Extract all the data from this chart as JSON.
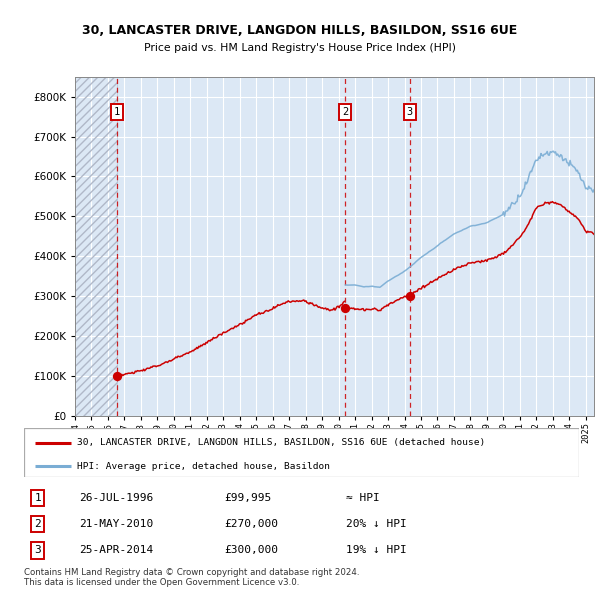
{
  "title1": "30, LANCASTER DRIVE, LANGDON HILLS, BASILDON, SS16 6UE",
  "title2": "Price paid vs. HM Land Registry's House Price Index (HPI)",
  "sales": [
    {
      "label": "1",
      "date": "26-JUL-1996",
      "price": 99995,
      "year": 1996.56,
      "hpi_rel": "≈ HPI"
    },
    {
      "label": "2",
      "date": "21-MAY-2010",
      "price": 270000,
      "year": 2010.38,
      "hpi_rel": "20% ↓ HPI"
    },
    {
      "label": "3",
      "date": "25-APR-2014",
      "price": 300000,
      "year": 2014.32,
      "hpi_rel": "19% ↓ HPI"
    }
  ],
  "xlim": [
    1994.0,
    2025.5
  ],
  "ylim": [
    0,
    850000
  ],
  "yticks": [
    0,
    100000,
    200000,
    300000,
    400000,
    500000,
    600000,
    700000,
    800000
  ],
  "ytick_labels": [
    "£0",
    "£100K",
    "£200K",
    "£300K",
    "£400K",
    "£500K",
    "£600K",
    "£700K",
    "£800K"
  ],
  "legend_line1": "30, LANCASTER DRIVE, LANGDON HILLS, BASILDON, SS16 6UE (detached house)",
  "legend_line2": "HPI: Average price, detached house, Basildon",
  "copyright": "Contains HM Land Registry data © Crown copyright and database right 2024.\nThis data is licensed under the Open Government Licence v3.0.",
  "bg_color": "#dce8f5",
  "grid_color": "#ffffff",
  "red_line_color": "#cc0000",
  "blue_line_color": "#7aadd4",
  "marker_color": "#cc0000",
  "vline_color": "#cc0000",
  "sale1_year": 1996.56,
  "sale1_price": 99995,
  "sale2_year": 2010.38,
  "sale2_price": 270000,
  "sale3_year": 2014.32,
  "sale3_price": 300000
}
